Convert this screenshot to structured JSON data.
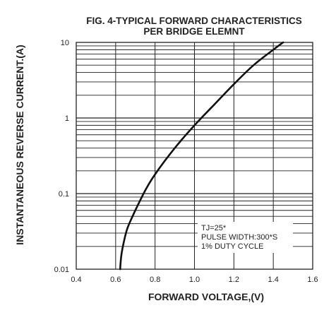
{
  "chart_data": {
    "type": "line",
    "title": "FIG. 4-TYPICAL FORWARD CHARACTERISTICS",
    "subtitle": "PER BRIDGE ELEMNT",
    "xlabel": "FORWARD VOLTAGE,(V)",
    "ylabel": "INSTANTANEOUS REVERSE CURRENT.(A)",
    "xlim": [
      0.4,
      1.6
    ],
    "ylim": [
      0.01,
      10
    ],
    "yscale": "log",
    "grid": true,
    "x_ticks": [
      "0.4",
      "0.6",
      "0.8",
      "1.0",
      "1.2",
      "1.4",
      "1.6"
    ],
    "y_ticks": [
      "0.01",
      "0.1",
      "1",
      "10"
    ],
    "annotations": [
      "TJ=25*",
      "PULSE WIDTH:300*S",
      "1% DUTY CYCLE"
    ],
    "series": [
      {
        "x": [
          0.623,
          0.625,
          0.63,
          0.64,
          0.66,
          0.7,
          0.75,
          0.8,
          0.9,
          1.0,
          1.1,
          1.2,
          1.3,
          1.4,
          1.45
        ],
        "y": [
          0.01,
          0.012,
          0.016,
          0.022,
          0.035,
          0.06,
          0.11,
          0.18,
          0.4,
          0.8,
          1.5,
          2.8,
          5.0,
          8.0,
          10.0
        ]
      }
    ]
  }
}
